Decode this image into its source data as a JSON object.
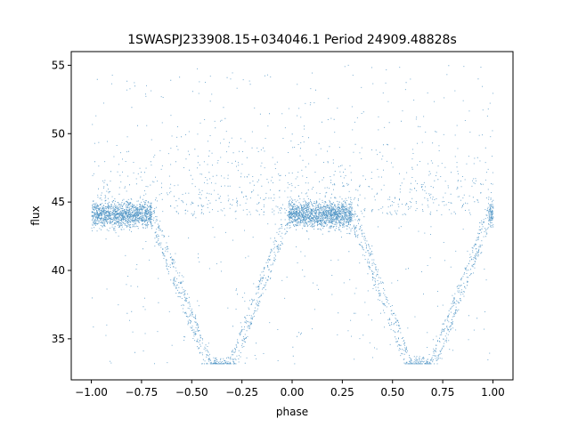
{
  "chart_data": {
    "type": "scatter",
    "title": "1SWASPJ233908.15+034046.1 Period 24909.48828s",
    "xlabel": "phase",
    "ylabel": "flux",
    "xlim": [
      -1.1,
      1.1
    ],
    "ylim": [
      32,
      56
    ],
    "x_ticks": [
      -1.0,
      -0.75,
      -0.5,
      -0.25,
      0.0,
      0.25,
      0.5,
      0.75,
      1.0
    ],
    "x_tick_labels": [
      "−1.00",
      "−0.75",
      "−0.50",
      "−0.25",
      "0.00",
      "0.25",
      "0.50",
      "0.75",
      "1.00"
    ],
    "y_ticks": [
      35,
      40,
      45,
      50,
      55
    ],
    "y_tick_labels": [
      "35",
      "40",
      "45",
      "50",
      "55"
    ],
    "grid": false,
    "marker_color": "#1f77b4",
    "series": [
      {
        "baseline_flux": 44.1,
        "baseline_spread": 0.45,
        "eclipse_floor_flux": 33.2,
        "eclipses": [
          {
            "ingress_start": -0.7,
            "minimum_start": -0.42,
            "minimum_end": -0.3,
            "egress_end": -0.02
          },
          {
            "ingress_start": 0.3,
            "minimum_start": 0.58,
            "minimum_end": 0.7,
            "egress_end": 0.98
          }
        ],
        "scatter_range": [
          33.0,
          55.0
        ]
      }
    ]
  }
}
